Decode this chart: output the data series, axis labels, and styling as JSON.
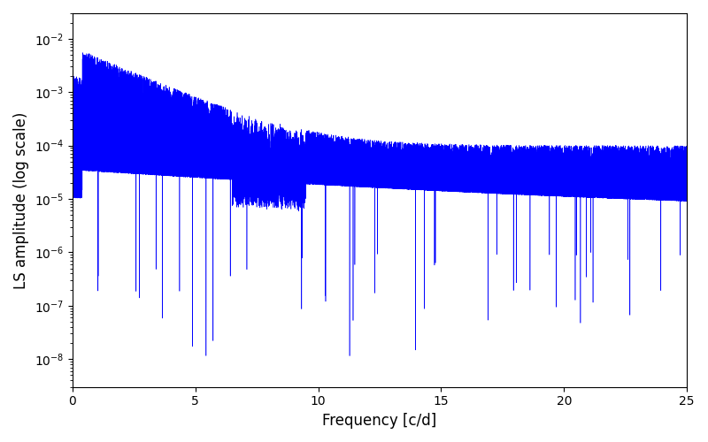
{
  "xlabel": "Frequency [c/d]",
  "ylabel": "LS amplitude (log scale)",
  "xlim": [
    0,
    25
  ],
  "ylim": [
    3e-09,
    0.03
  ],
  "line_color": "#0000ff",
  "line_width": 0.4,
  "background_color": "#ffffff",
  "n_points": 25000,
  "freq_max": 25.0,
  "seed": 123,
  "xlabel_fontsize": 12,
  "ylabel_fontsize": 12
}
